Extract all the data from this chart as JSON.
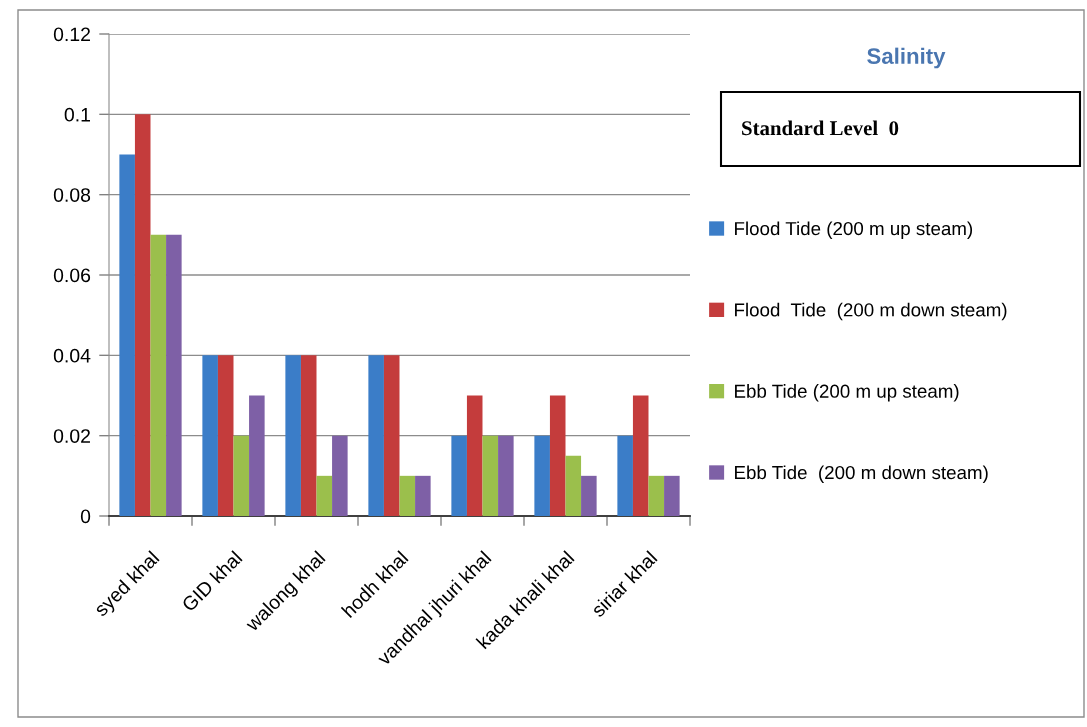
{
  "chart_data": {
    "type": "bar",
    "title": "Salinity",
    "annotations": [
      "Standard Level  0"
    ],
    "categories": [
      "syed khal",
      "GID khal",
      "walong khal",
      "hodh khal",
      "vandhal jhuri khal",
      "kada khali khal",
      "siriar khal"
    ],
    "series": [
      {
        "name": "Flood Tide (200 m up steam)",
        "color": "#3b7dc8",
        "values": [
          0.09,
          0.04,
          0.04,
          0.04,
          0.02,
          0.02,
          0.02
        ]
      },
      {
        "name": "Flood  Tide  (200 m down steam)",
        "color": "#c43c3c",
        "values": [
          0.1,
          0.04,
          0.04,
          0.04,
          0.03,
          0.03,
          0.03
        ]
      },
      {
        "name": "Ebb Tide (200 m up steam)",
        "color": "#9bbf4c",
        "values": [
          0.07,
          0.02,
          0.01,
          0.01,
          0.02,
          0.015,
          0.01
        ]
      },
      {
        "name": "Ebb Tide  (200 m down steam)",
        "color": "#7e60a6",
        "values": [
          0.07,
          0.03,
          0.02,
          0.01,
          0.02,
          0.01,
          0.01
        ]
      }
    ],
    "ylim": [
      0,
      0.12
    ],
    "yticks": [
      0,
      0.02,
      0.04,
      0.06,
      0.08,
      0.1,
      0.12
    ],
    "grid": "y",
    "legend": "right"
  }
}
